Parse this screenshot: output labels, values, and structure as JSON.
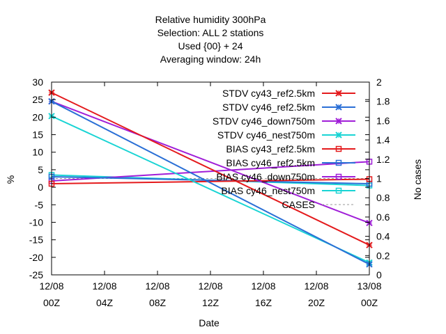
{
  "chart_data": {
    "type": "line",
    "title": [
      "Relative humidity 300hPa",
      "Selection: ALL      2 stations",
      "Used {00} + 24",
      "Averaging window: 24h"
    ],
    "xlabel": "Date",
    "ylabel": "%",
    "y2label": "No cases",
    "x_ticks": [
      {
        "line1": "12/08",
        "line2": "00Z"
      },
      {
        "line1": "12/08",
        "line2": "04Z"
      },
      {
        "line1": "12/08",
        "line2": "08Z"
      },
      {
        "line1": "12/08",
        "line2": "12Z"
      },
      {
        "line1": "12/08",
        "line2": "16Z"
      },
      {
        "line1": "12/08",
        "line2": "20Z"
      },
      {
        "line1": "13/08",
        "line2": "00Z"
      }
    ],
    "x": [
      "12/08 00Z",
      "13/08 00Z"
    ],
    "ylim": [
      -25,
      30
    ],
    "yticks": [
      -25,
      -20,
      -15,
      -10,
      -5,
      0,
      5,
      10,
      15,
      20,
      25,
      30
    ],
    "y2lim": [
      0,
      2
    ],
    "y2ticks": [
      "0",
      "0.2",
      "0.4",
      "0.6",
      "0.8",
      "1",
      "1.2",
      "1.4",
      "1.6",
      "1.8",
      "2"
    ],
    "grid": false,
    "legend_position": "top-right",
    "series": [
      {
        "name": "STDV cy43_ref2.5km",
        "color": "#e41a1c",
        "marker": "x",
        "values": [
          27.0,
          -16.5
        ]
      },
      {
        "name": "STDV cy46_ref2.5km",
        "color": "#2a6fd6",
        "marker": "x",
        "values": [
          24.5,
          -22.0
        ]
      },
      {
        "name": "STDV cy46_down750m",
        "color": "#a01ed8",
        "marker": "x",
        "values": [
          24.5,
          -10.2
        ]
      },
      {
        "name": "STDV cy46_nest750m",
        "color": "#19d4d4",
        "marker": "x",
        "values": [
          20.3,
          -21.5
        ]
      },
      {
        "name": "BIAS cy43_ref2.5km",
        "color": "#e41a1c",
        "marker": "square",
        "values": [
          1.0,
          2.3
        ]
      },
      {
        "name": "BIAS cy46_ref2.5km",
        "color": "#2a6fd6",
        "marker": "square",
        "values": [
          3.0,
          1.0
        ]
      },
      {
        "name": "BIAS cy46_down750m",
        "color": "#a01ed8",
        "marker": "square",
        "values": [
          1.8,
          7.3
        ]
      },
      {
        "name": "BIAS cy46_nest750m",
        "color": "#19d4d4",
        "marker": "square",
        "values": [
          3.5,
          0.5
        ]
      }
    ],
    "cases": {
      "name": "CASES",
      "color": "#999999",
      "axis": "y2",
      "values": [
        1,
        1
      ]
    }
  }
}
